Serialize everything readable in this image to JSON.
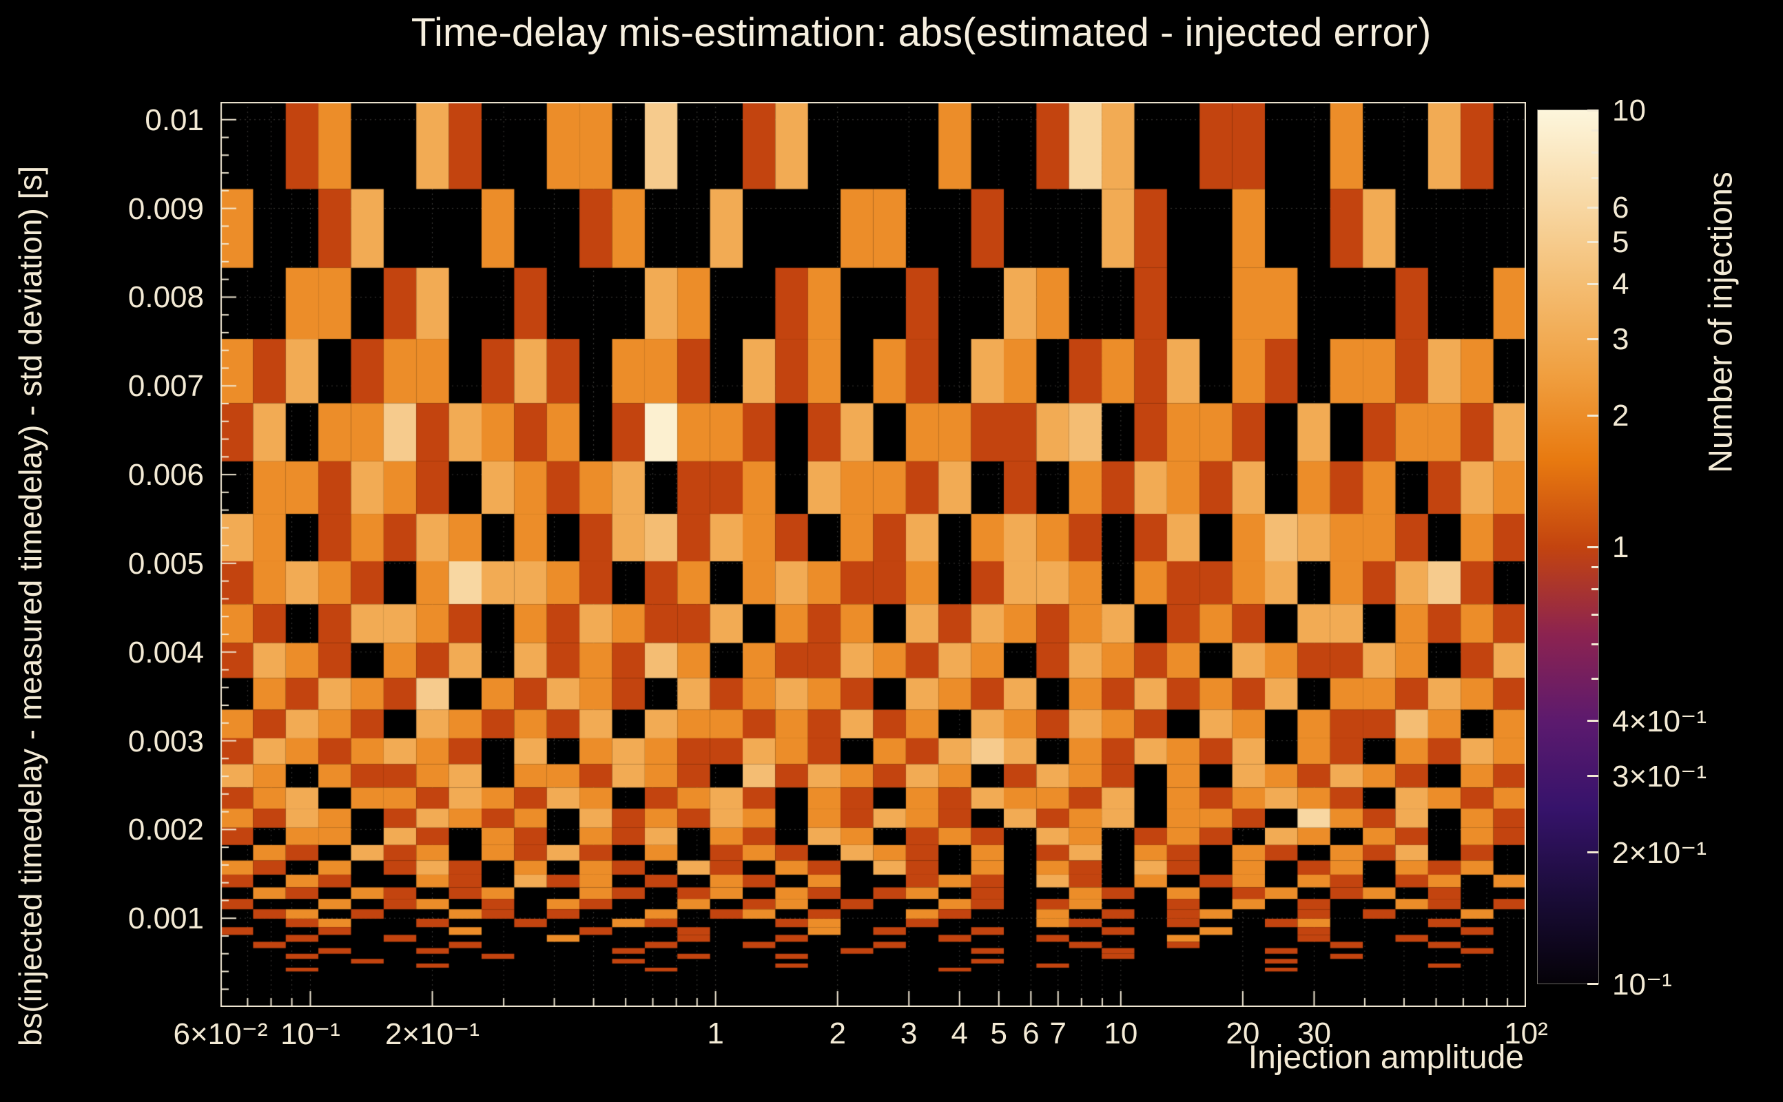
{
  "chart_data": {
    "type": "heatmap",
    "title": "Time-delay mis-estimation: abs(estimated - injected error)",
    "xlabel": "Injection amplitude",
    "ylabel": "bs(injected timedelay - measured timedelay) - std deviation) [s]",
    "colorbar_label": "Number of injections",
    "x_scale": "log",
    "y_axis": {
      "min": 0,
      "max": 0.0102
    },
    "x_bins": {
      "min": 0.06,
      "max": 100,
      "count": 40,
      "scale": "log"
    },
    "y_bins": {
      "min": 0.0004,
      "max": 0.0102,
      "count": 32,
      "scale": "log"
    },
    "z_scale": "log",
    "z_min": 0.1,
    "z_max": 10,
    "grid": "dotted",
    "x_ticks": [
      {
        "v": 0.06,
        "label": "6×10⁻²"
      },
      {
        "v": 0.1,
        "label": "10⁻¹"
      },
      {
        "v": 0.2,
        "label": "2×10⁻¹"
      },
      {
        "v": 1,
        "label": "1"
      },
      {
        "v": 2,
        "label": "2"
      },
      {
        "v": 3,
        "label": "3"
      },
      {
        "v": 4,
        "label": "4"
      },
      {
        "v": 5,
        "label": "5"
      },
      {
        "v": 6,
        "label": "6"
      },
      {
        "v": 7,
        "label": "7"
      },
      {
        "v": 10,
        "label": "10"
      },
      {
        "v": 20,
        "label": "20"
      },
      {
        "v": 30,
        "label": "30"
      },
      {
        "v": 100,
        "label": "10²"
      }
    ],
    "y_ticks": [
      {
        "v": 0.001,
        "label": "0.001"
      },
      {
        "v": 0.002,
        "label": "0.002"
      },
      {
        "v": 0.003,
        "label": "0.003"
      },
      {
        "v": 0.004,
        "label": "0.004"
      },
      {
        "v": 0.005,
        "label": "0.005"
      },
      {
        "v": 0.006,
        "label": "0.006"
      },
      {
        "v": 0.007,
        "label": "0.007"
      },
      {
        "v": 0.008,
        "label": "0.008"
      },
      {
        "v": 0.009,
        "label": "0.009"
      },
      {
        "v": 0.01,
        "label": "0.01"
      }
    ],
    "colorbar_ticks": [
      {
        "v": 10,
        "label": "10"
      },
      {
        "v": 6,
        "label": "6"
      },
      {
        "v": 5,
        "label": "5"
      },
      {
        "v": 4,
        "label": "4"
      },
      {
        "v": 3,
        "label": "3"
      },
      {
        "v": 2,
        "label": "2"
      },
      {
        "v": 1,
        "label": "1"
      },
      {
        "v": 0.4,
        "label": "4×10⁻¹"
      },
      {
        "v": 0.3,
        "label": "3×10⁻¹"
      },
      {
        "v": 0.2,
        "label": "2×10⁻¹"
      },
      {
        "v": 0.1,
        "label": "10⁻¹"
      }
    ],
    "colorbar_minor_ticks": [
      9,
      8,
      7,
      0.9,
      0.8,
      0.7,
      0.6,
      0.5
    ],
    "palette_stops": [
      "#050208",
      "#1a0c38",
      "#36136b",
      "#5c1a6e",
      "#8c2350",
      "#c3440f",
      "#e87a10",
      "#f0a041",
      "#f4bd72",
      "#f8daa8",
      "#fdf6dc"
    ],
    "axis_color": "#f3ead5",
    "background_color": "#000000",
    "cell_values_encoding": "rows[] lists y-bins from top (0.0102 s) to bottom (0.0004 s), log-spaced; each character is the injection count in the corresponding log-spaced x-bin, 0 = empty (black)",
    "rows": [
      "0012003100220500130000200163001100200310",
      "2001300020012003000220010003100200130000",
      "0022013001000320012001003200100220001002",
      "2130122013102210312021032012130210221320",
      "1302251321201922101302211340122103012213",
      "0221321032123011203221301021321302120132",
      "3201213202013413210213023210130243221021",
      "1232102633210120232112013320211230213510",
      "2101332102132113021203132123012103302121",
      "1321021303121420211321320132120321132013",
      "0213215021321031232103213021312130221321",
      "2132103212130322121312032132103202114202",
      "1321232103023211321021353021321302102132",
      "3202112302213210413213201321020321321021",
      "1230221321320123102102132213021232103212",
      "2132013212031213202132103123022106213021",
      "1022031021021302103201210320121032021021",
      "0210312021310201210321020130210210213010",
      "2102013102021031021031020210310201202120",
      "1021002103120102102001210310201202101202",
      "0210210120021012021012010021020120120100",
      "1002012010210020120100210120010201002101",
      "0120100210100201201002100201012001010020",
      "0012001001002100012001000210010012000100",
      "1001000200010010002010010001002001000010",
      "0010010000200010010000100100020001001000",
      "0100000100000100100010000010010000100100",
      "0001001000001000000100010001000010000010",
      "0010000010000010010000000001000000100000",
      "0000100000001000000000010000000010000000",
      "0000001000000000010000000100000000000100",
      "0010000000000100000000100000000010000000"
    ]
  }
}
